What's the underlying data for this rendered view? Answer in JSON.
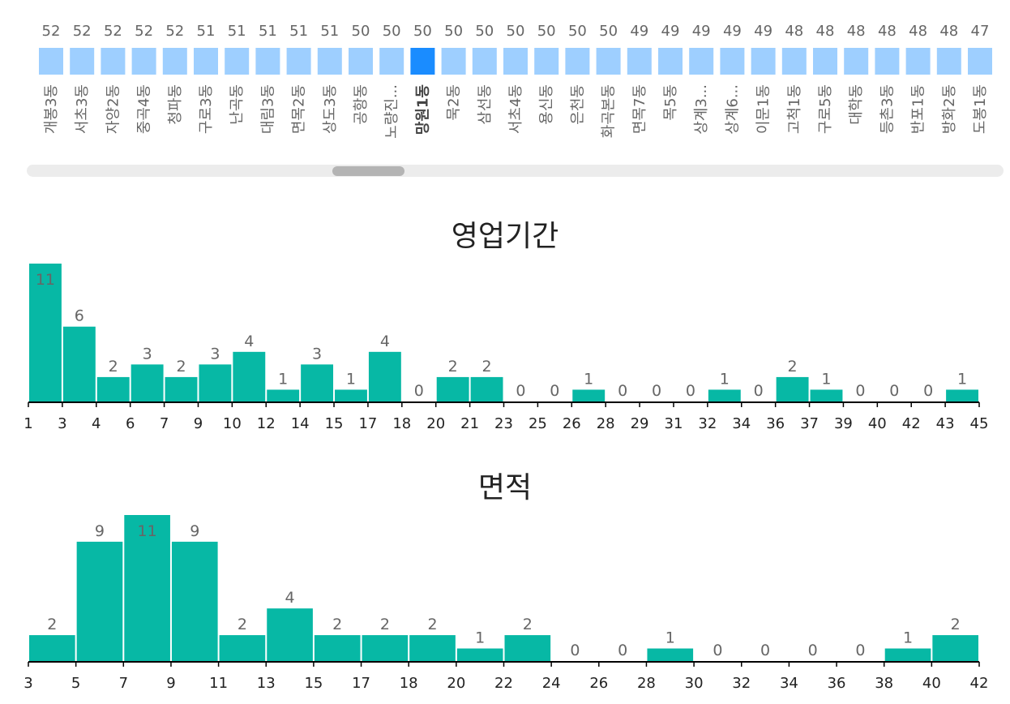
{
  "colors": {
    "dong_bar": "#9ecfff",
    "dong_bar_selected": "#1a8cff",
    "hist_bar": "#07b8a5",
    "label": "#666666"
  },
  "dong_chart": {
    "selected": "망원1동",
    "items": [
      {
        "name": "개봉3동",
        "value": 52
      },
      {
        "name": "서초3동",
        "value": 52
      },
      {
        "name": "자양2동",
        "value": 52
      },
      {
        "name": "중곡4동",
        "value": 52
      },
      {
        "name": "청파동",
        "value": 52
      },
      {
        "name": "구로3동",
        "value": 51
      },
      {
        "name": "난곡동",
        "value": 51
      },
      {
        "name": "대림3동",
        "value": 51
      },
      {
        "name": "면목2동",
        "value": 51
      },
      {
        "name": "상도3동",
        "value": 51
      },
      {
        "name": "공항동",
        "value": 50
      },
      {
        "name": "노량진...",
        "value": 50
      },
      {
        "name": "망원1동",
        "value": 50
      },
      {
        "name": "묵2동",
        "value": 50
      },
      {
        "name": "삼선동",
        "value": 50
      },
      {
        "name": "서초4동",
        "value": 50
      },
      {
        "name": "용신동",
        "value": 50
      },
      {
        "name": "은천동",
        "value": 50
      },
      {
        "name": "화곡본동",
        "value": 50
      },
      {
        "name": "면목7동",
        "value": 49
      },
      {
        "name": "목5동",
        "value": 49
      },
      {
        "name": "상계3...",
        "value": 49
      },
      {
        "name": "상계6...",
        "value": 49
      },
      {
        "name": "이문1동",
        "value": 49
      },
      {
        "name": "고척1동",
        "value": 48
      },
      {
        "name": "구로5동",
        "value": 48
      },
      {
        "name": "대학동",
        "value": 48
      },
      {
        "name": "등촌3동",
        "value": 48
      },
      {
        "name": "반포1동",
        "value": 48
      },
      {
        "name": "방화2동",
        "value": 48
      },
      {
        "name": "도봉1동",
        "value": 47
      }
    ]
  },
  "chart_data": [
    {
      "type": "bar",
      "title": "영업기간",
      "ticks": [
        "1",
        "3",
        "4",
        "6",
        "7",
        "9",
        "10",
        "12",
        "14",
        "15",
        "17",
        "18",
        "20",
        "21",
        "23",
        "25",
        "26",
        "28",
        "29",
        "31",
        "32",
        "34",
        "36",
        "37",
        "39",
        "40",
        "42",
        "43",
        "45"
      ],
      "values": [
        11,
        6,
        2,
        3,
        2,
        3,
        4,
        1,
        3,
        1,
        4,
        0,
        2,
        2,
        0,
        0,
        1,
        0,
        0,
        0,
        1,
        0,
        2,
        1,
        0,
        0,
        0,
        1
      ]
    },
    {
      "type": "bar",
      "title": "면적",
      "ticks": [
        "3",
        "5",
        "7",
        "9",
        "11",
        "13",
        "15",
        "17",
        "18",
        "20",
        "22",
        "24",
        "26",
        "28",
        "30",
        "32",
        "34",
        "36",
        "38",
        "40",
        "42"
      ],
      "values": [
        2,
        9,
        11,
        9,
        2,
        4,
        2,
        2,
        2,
        1,
        2,
        0,
        0,
        1,
        0,
        0,
        0,
        0,
        1,
        2
      ]
    }
  ]
}
